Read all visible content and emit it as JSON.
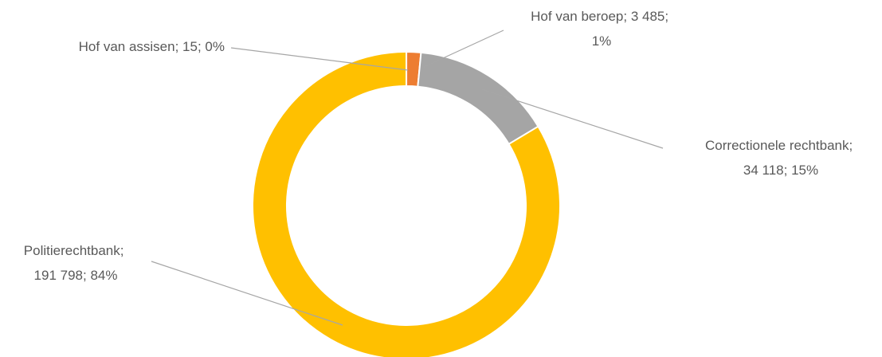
{
  "chart_data": {
    "type": "donut",
    "categories": [
      "Hof van assisen",
      "Hof van beroep",
      "Correctionele rechtbank",
      "Politierechtbank"
    ],
    "values": [
      15,
      3485,
      34118,
      191798
    ],
    "value_labels": [
      "15",
      "3 485",
      "34 118",
      "191 798"
    ],
    "percentages": [
      0,
      1,
      15,
      84
    ],
    "percentage_labels": [
      "0%",
      "1%",
      "15%",
      "84%"
    ],
    "label_separator": "; ",
    "colors": [
      "#4472c4",
      "#ed7d31",
      "#a5a5a5",
      "#ffc000"
    ]
  }
}
